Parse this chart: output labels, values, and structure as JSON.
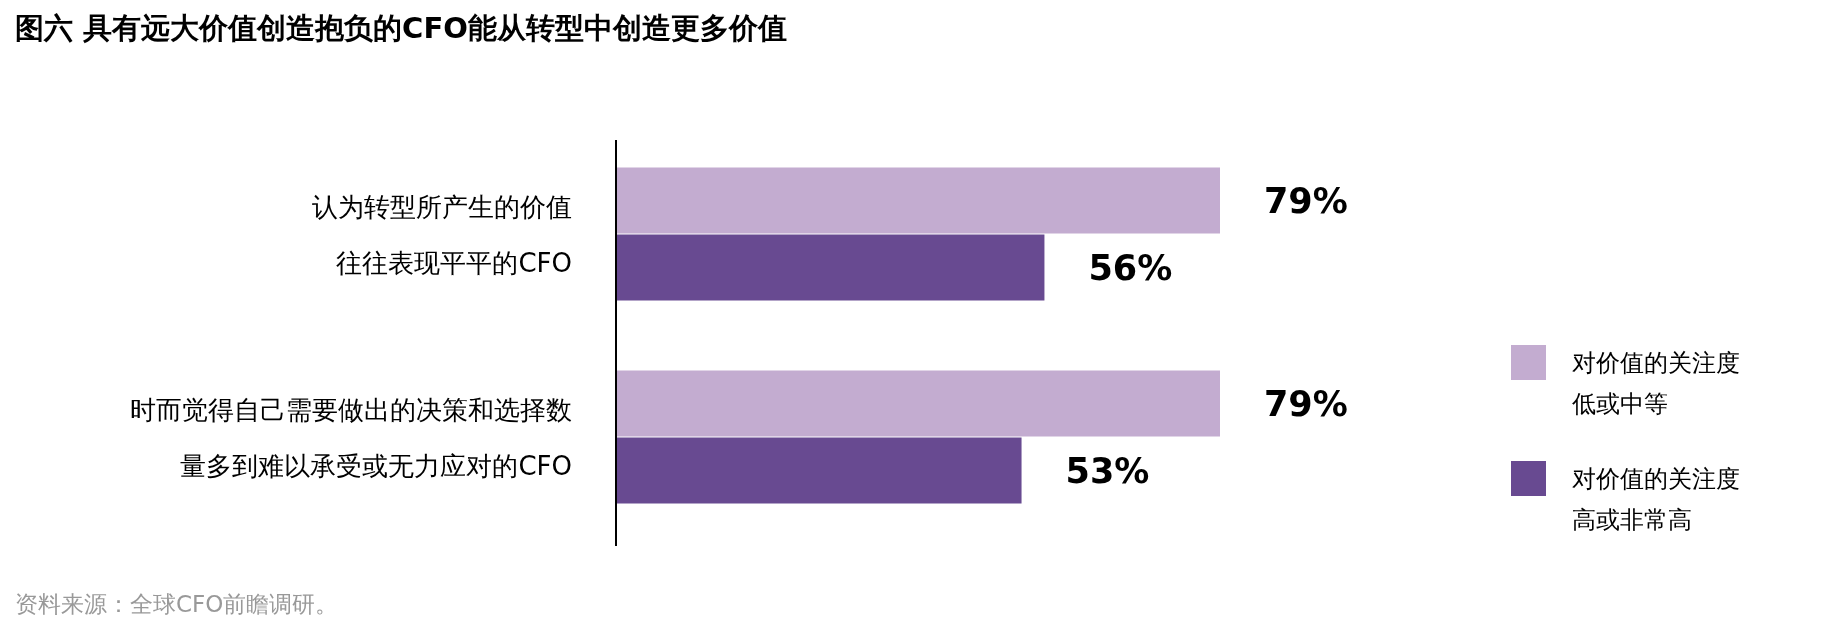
{
  "chart_data": {
    "type": "bar",
    "orientation": "horizontal",
    "title": "图六  具有远大价值创造抱负的CFO能从转型中创造更多价值",
    "categories": [
      "认为转型所产生的价值往往表现平平的CFO",
      "时而觉得自己需要做出的决策和选择数量多到难以承受或无力应对的CFO"
    ],
    "series": [
      {
        "name": "对价值的关注度低或中等",
        "color": "#c3acd0",
        "values": [
          79,
          79
        ],
        "value_labels": [
          "79%",
          "79%"
        ]
      },
      {
        "name": "对价值的关注度高或非常高",
        "color": "#684a91",
        "values": [
          56,
          53
        ],
        "value_labels": [
          "56%",
          "53%"
        ]
      }
    ],
    "legend": "right",
    "annotations": [
      "资料来源：全球CFO前瞻调研。"
    ]
  }
}
